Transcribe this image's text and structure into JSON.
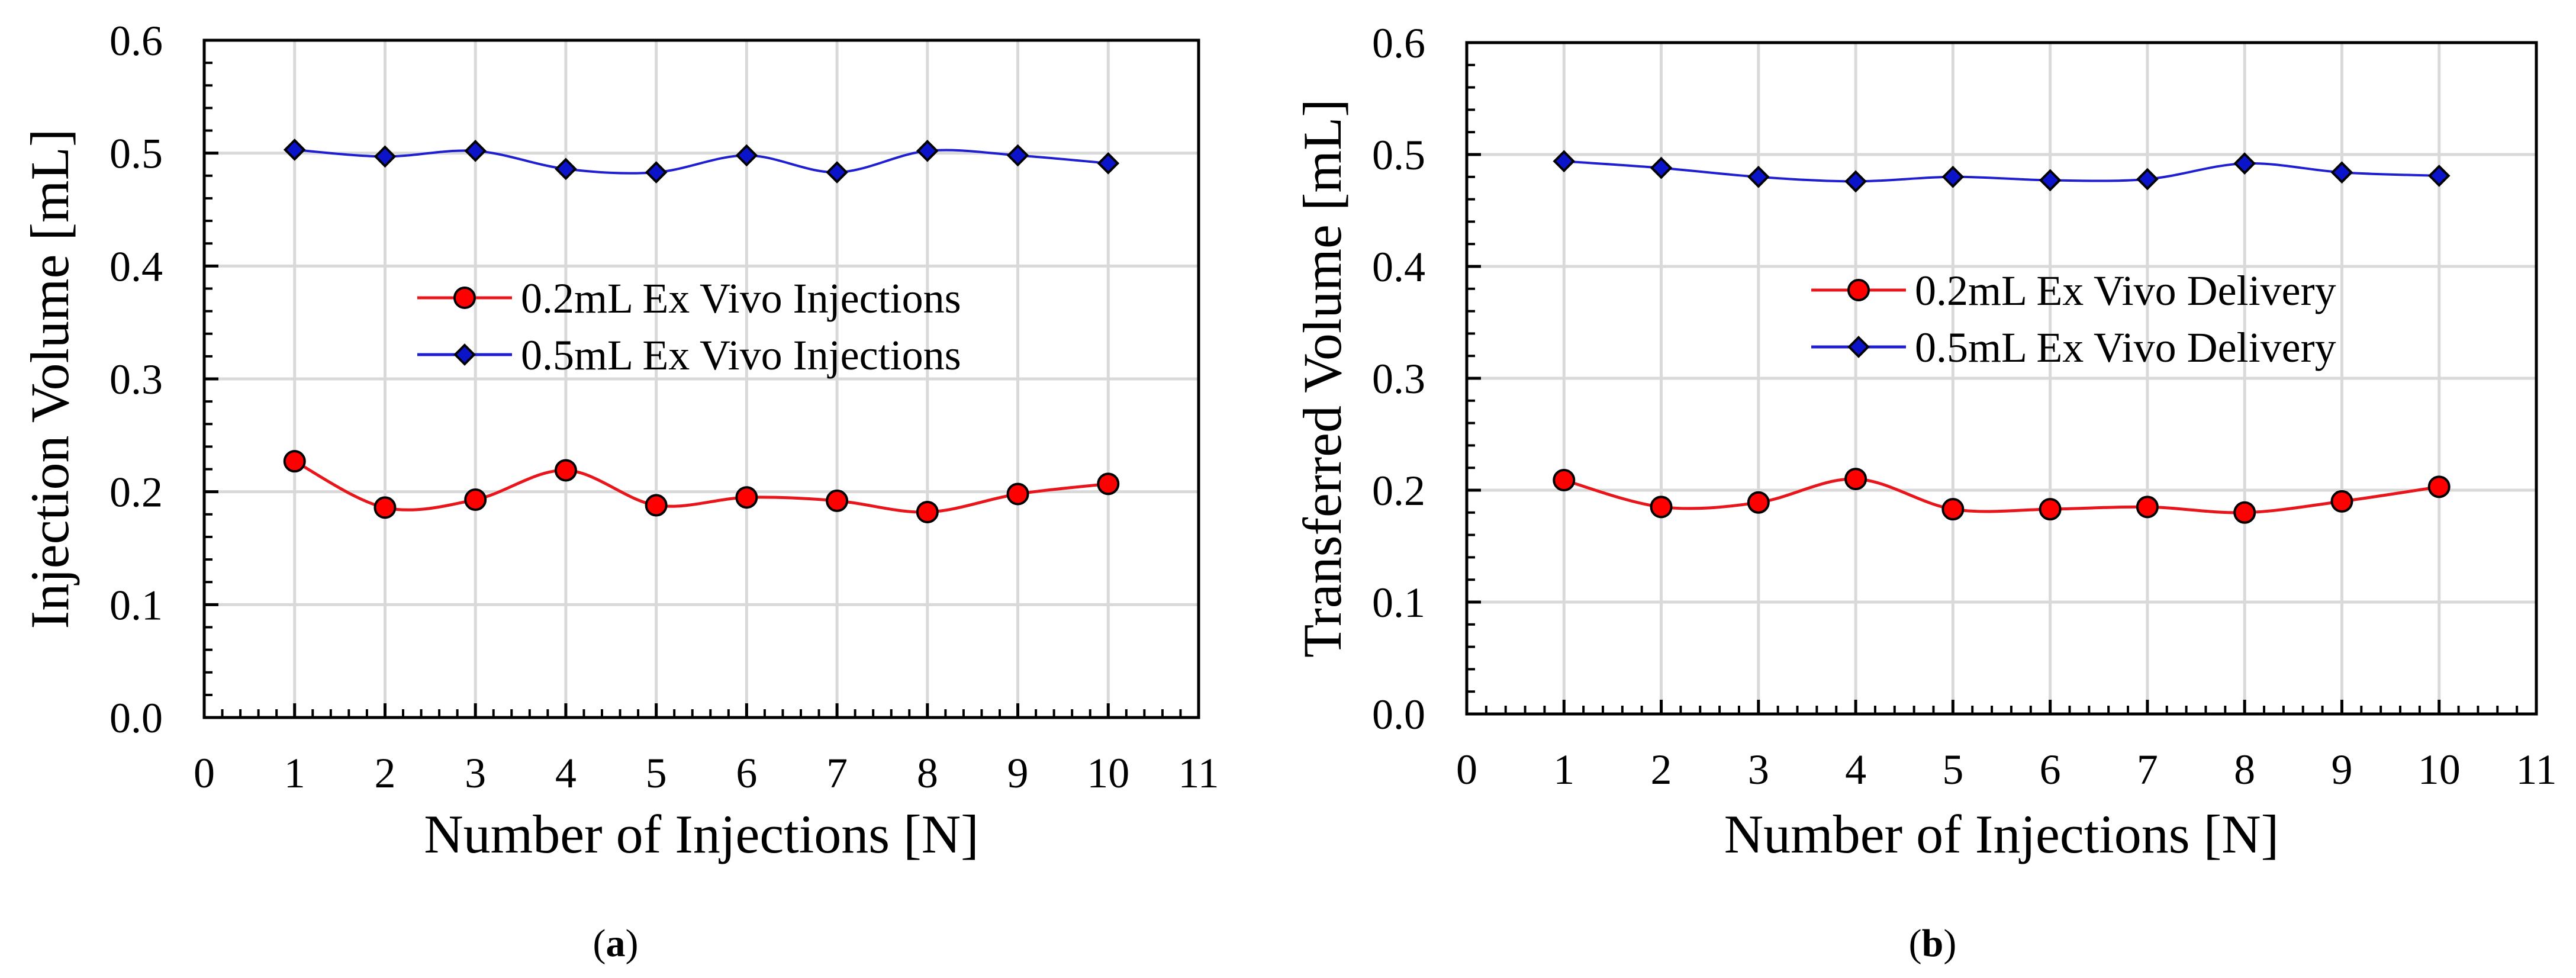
{
  "figure": {
    "captions": [
      {
        "open": "(",
        "letter": "a",
        "close": ")"
      },
      {
        "open": "(",
        "letter": "b",
        "close": ")"
      }
    ]
  },
  "colors": {
    "red_series": "#e8151b",
    "red_marker": "#ff0000",
    "blue_series": "#1f1fd1",
    "blue_marker": "#0b14c9",
    "grid": "#d9d9d9",
    "axis": "#000000"
  },
  "chart_data": [
    {
      "type": "line",
      "title": "",
      "xlabel": "Number of Injections [N]",
      "ylabel": "Injection Volume [mL]",
      "xlim": [
        0,
        11
      ],
      "ylim": [
        0,
        0.6
      ],
      "xticks": [
        "0",
        "1",
        "2",
        "3",
        "4",
        "5",
        "6",
        "7",
        "8",
        "9",
        "10",
        "11"
      ],
      "yticks": [
        "0.0",
        "0.1",
        "0.2",
        "0.3",
        "0.4",
        "0.5",
        "0.6"
      ],
      "grid": true,
      "legend_position": "center-right",
      "x": [
        1,
        2,
        3,
        4,
        5,
        6,
        7,
        8,
        9,
        10
      ],
      "series": [
        {
          "name": "0.2mL Ex Vivo Injections",
          "marker": "circle",
          "color": "red",
          "values": [
            0.227,
            0.186,
            0.193,
            0.219,
            0.188,
            0.195,
            0.192,
            0.182,
            0.198,
            0.207
          ]
        },
        {
          "name": "0.5mL Ex Vivo Injections",
          "marker": "diamond",
          "color": "blue",
          "values": [
            0.503,
            0.497,
            0.502,
            0.486,
            0.483,
            0.498,
            0.483,
            0.502,
            0.498,
            0.491
          ]
        }
      ]
    },
    {
      "type": "line",
      "title": "",
      "xlabel": "Number of Injections [N]",
      "ylabel": "Transferred Volume [mL]",
      "xlim": [
        0,
        11
      ],
      "ylim": [
        0,
        0.6
      ],
      "xticks": [
        "0",
        "1",
        "2",
        "3",
        "4",
        "5",
        "6",
        "7",
        "8",
        "9",
        "10",
        "11"
      ],
      "yticks": [
        "0.0",
        "0.1",
        "0.2",
        "0.3",
        "0.4",
        "0.5",
        "0.6"
      ],
      "grid": true,
      "legend_position": "center-right",
      "x": [
        1,
        2,
        3,
        4,
        5,
        6,
        7,
        8,
        9,
        10
      ],
      "series": [
        {
          "name": "0.2mL Ex Vivo Delivery",
          "marker": "circle",
          "color": "red",
          "values": [
            0.209,
            0.185,
            0.189,
            0.21,
            0.183,
            0.183,
            0.185,
            0.18,
            0.19,
            0.203
          ]
        },
        {
          "name": "0.5mL Ex Vivo Delivery",
          "marker": "diamond",
          "color": "blue",
          "values": [
            0.494,
            0.488,
            0.48,
            0.476,
            0.48,
            0.477,
            0.478,
            0.492,
            0.484,
            0.481
          ]
        }
      ]
    }
  ]
}
